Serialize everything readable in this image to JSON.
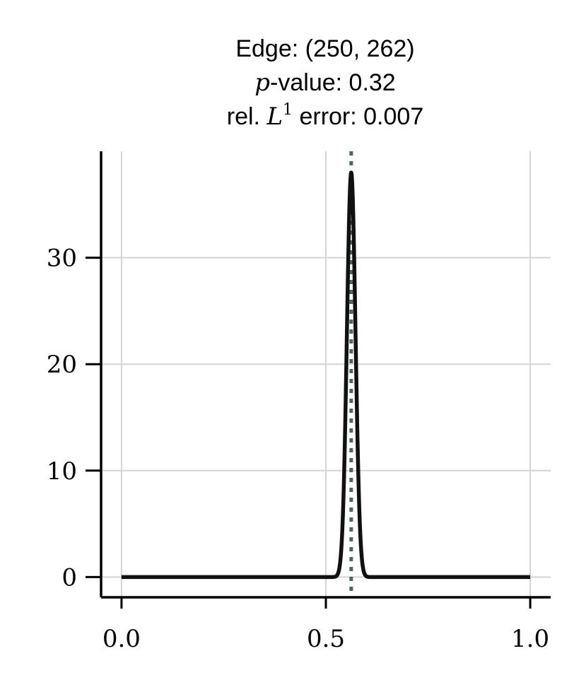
{
  "chart_data": {
    "type": "line",
    "title": {
      "line1": "Edge: (250, 262)",
      "line2_var": "p",
      "line2_rest": "-value: 0.32",
      "line3_pre": "rel. ",
      "line3_var": "L",
      "line3_sup": "1",
      "line3_rest": " error: 0.007"
    },
    "xlabel": "",
    "ylabel": "",
    "xlim": [
      -0.05,
      1.05
    ],
    "ylim": [
      -1.9,
      40
    ],
    "xticks": [
      {
        "value": 0.0,
        "label": "0.0"
      },
      {
        "value": 0.5,
        "label": "0.5"
      },
      {
        "value": 1.0,
        "label": "1.0"
      }
    ],
    "yticks": [
      {
        "value": 0,
        "label": "0"
      },
      {
        "value": 10,
        "label": "10"
      },
      {
        "value": 20,
        "label": "20"
      },
      {
        "value": 30,
        "label": "30"
      }
    ],
    "grid": true,
    "series": [
      {
        "kind": "density",
        "color": "#111111",
        "peak_x": 0.562,
        "peak_y": 38.0,
        "sigma": 0.0105,
        "x_range": [
          0.0,
          1.0
        ]
      }
    ],
    "reference_line": {
      "x": 0.562,
      "style": "dotted",
      "color": "#4f6660"
    }
  }
}
